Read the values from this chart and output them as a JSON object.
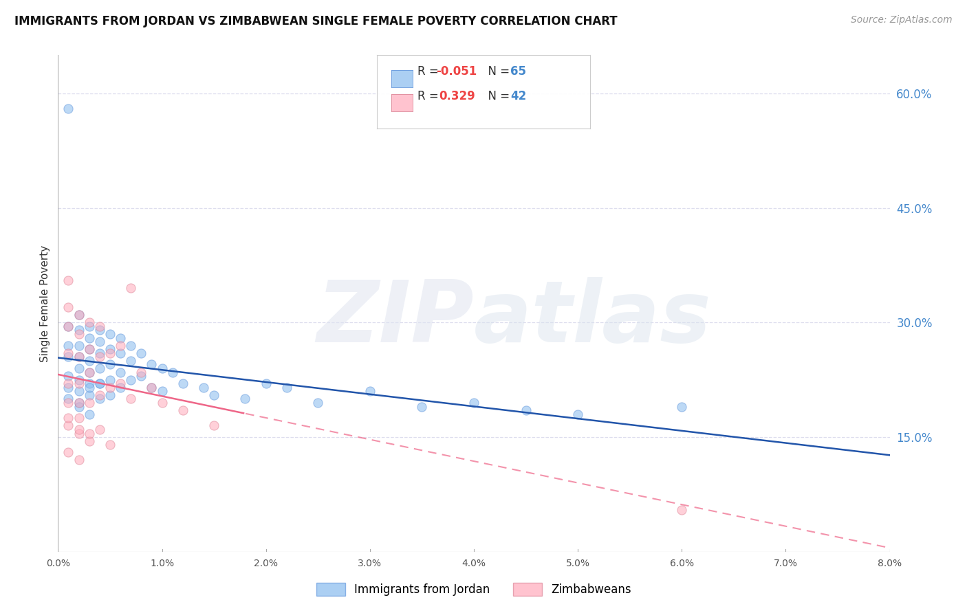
{
  "title": "IMMIGRANTS FROM JORDAN VS ZIMBABWEAN SINGLE FEMALE POVERTY CORRELATION CHART",
  "source": "Source: ZipAtlas.com",
  "ylabel_left": "Single Female Poverty",
  "legend_label1": "Immigrants from Jordan",
  "legend_label2": "Zimbabweans",
  "blue_color": "#88BBEE",
  "pink_color": "#FFAABB",
  "blue_line_color": "#2255AA",
  "pink_line_color": "#EE6688",
  "right_ytick_color": "#4488CC",
  "grid_color": "#DDDDEE",
  "background_color": "#FFFFFF",
  "xlim": [
    0.0,
    0.08
  ],
  "ylim": [
    0.0,
    0.65
  ],
  "jordan_x": [
    0.001,
    0.001,
    0.001,
    0.001,
    0.001,
    0.001,
    0.002,
    0.002,
    0.002,
    0.002,
    0.002,
    0.002,
    0.002,
    0.002,
    0.003,
    0.003,
    0.003,
    0.003,
    0.003,
    0.003,
    0.003,
    0.003,
    0.004,
    0.004,
    0.004,
    0.004,
    0.004,
    0.004,
    0.005,
    0.005,
    0.005,
    0.005,
    0.005,
    0.006,
    0.006,
    0.006,
    0.006,
    0.007,
    0.007,
    0.007,
    0.008,
    0.008,
    0.009,
    0.009,
    0.01,
    0.01,
    0.011,
    0.012,
    0.014,
    0.015,
    0.018,
    0.02,
    0.022,
    0.025,
    0.03,
    0.035,
    0.04,
    0.045,
    0.05,
    0.06,
    0.001,
    0.002,
    0.003,
    0.004
  ],
  "jordan_y": [
    0.295,
    0.27,
    0.255,
    0.23,
    0.215,
    0.2,
    0.31,
    0.29,
    0.27,
    0.255,
    0.24,
    0.225,
    0.21,
    0.195,
    0.295,
    0.28,
    0.265,
    0.25,
    0.235,
    0.22,
    0.205,
    0.18,
    0.29,
    0.275,
    0.26,
    0.24,
    0.22,
    0.2,
    0.285,
    0.265,
    0.245,
    0.225,
    0.205,
    0.28,
    0.26,
    0.235,
    0.215,
    0.27,
    0.25,
    0.225,
    0.26,
    0.23,
    0.245,
    0.215,
    0.24,
    0.21,
    0.235,
    0.22,
    0.215,
    0.205,
    0.2,
    0.22,
    0.215,
    0.195,
    0.21,
    0.19,
    0.195,
    0.185,
    0.18,
    0.19,
    0.58,
    0.19,
    0.215,
    0.22
  ],
  "zimbabwe_x": [
    0.001,
    0.001,
    0.001,
    0.001,
    0.001,
    0.002,
    0.002,
    0.002,
    0.002,
    0.002,
    0.003,
    0.003,
    0.003,
    0.003,
    0.004,
    0.004,
    0.004,
    0.005,
    0.005,
    0.006,
    0.006,
    0.007,
    0.007,
    0.008,
    0.009,
    0.01,
    0.012,
    0.015,
    0.001,
    0.002,
    0.003,
    0.001,
    0.002,
    0.001,
    0.002,
    0.001,
    0.002,
    0.003,
    0.004,
    0.005,
    0.06
  ],
  "zimbabwe_y": [
    0.355,
    0.32,
    0.295,
    0.26,
    0.22,
    0.31,
    0.285,
    0.255,
    0.22,
    0.195,
    0.3,
    0.265,
    0.235,
    0.195,
    0.295,
    0.255,
    0.205,
    0.26,
    0.215,
    0.27,
    0.22,
    0.345,
    0.2,
    0.235,
    0.215,
    0.195,
    0.185,
    0.165,
    0.165,
    0.155,
    0.145,
    0.13,
    0.12,
    0.175,
    0.16,
    0.195,
    0.175,
    0.155,
    0.16,
    0.14,
    0.055
  ]
}
